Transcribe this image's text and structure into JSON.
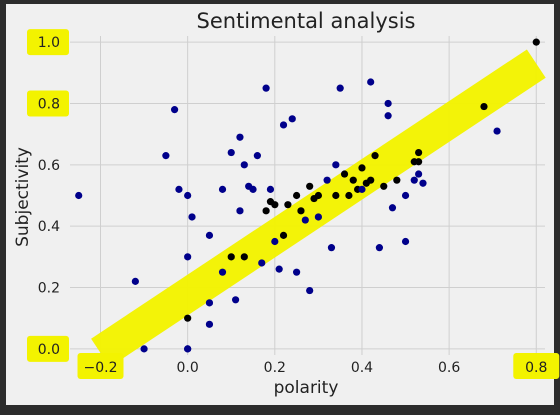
{
  "chart_data": {
    "type": "scatter",
    "title": "Sentimental analysis",
    "xlabel": "polarity",
    "ylabel": "Subjectivity",
    "xlim": [
      -0.27,
      0.82
    ],
    "ylim": [
      -0.02,
      1.02
    ],
    "xticks": [
      -0.2,
      0.0,
      0.2,
      0.4,
      0.6,
      0.8
    ],
    "xtick_labels": [
      "−0.2",
      "0.0",
      "0.2",
      "0.4",
      "0.6",
      "0.8"
    ],
    "yticks": [
      0.0,
      0.2,
      0.4,
      0.6,
      0.8,
      1.0
    ],
    "ytick_labels": [
      "0.0",
      "0.2",
      "0.4",
      "0.6",
      "0.8",
      "1.0"
    ],
    "grid": true,
    "highlighted_ticks": [
      "−0.2",
      "0.8",
      "0.0",
      "1.0"
    ],
    "trend_band": {
      "x": [
        -0.2,
        0.8
      ],
      "y": [
        0.0,
        0.93
      ]
    },
    "colors": {
      "background": "#2c2c2c",
      "plot_background": "#f0f0f0",
      "figure_background": "#f0f0f0",
      "point_default": "#00008b",
      "point_on_band": "#000000",
      "highlight": "#f3f300",
      "grid": "#cfcfcf",
      "text": "#222222"
    },
    "series": [
      {
        "values_x": [
          -0.25,
          -0.12,
          -0.1,
          -0.05,
          -0.03,
          -0.02,
          0.0,
          0.0,
          0.0,
          0.0,
          0.0,
          0.01,
          0.05,
          0.05,
          0.05,
          0.08,
          0.08,
          0.1,
          0.1,
          0.11,
          0.12,
          0.12,
          0.13,
          0.13,
          0.14,
          0.15,
          0.16,
          0.17,
          0.18,
          0.18,
          0.19,
          0.19,
          0.2,
          0.2,
          0.21,
          0.22,
          0.22,
          0.23,
          0.24,
          0.25,
          0.25,
          0.26,
          0.27,
          0.28,
          0.28,
          0.29,
          0.3,
          0.3,
          0.32,
          0.33,
          0.34,
          0.34,
          0.35,
          0.36,
          0.37,
          0.38,
          0.39,
          0.4,
          0.4,
          0.41,
          0.42,
          0.42,
          0.43,
          0.44,
          0.45,
          0.46,
          0.46,
          0.47,
          0.48,
          0.5,
          0.5,
          0.52,
          0.52,
          0.53,
          0.53,
          0.53,
          0.54,
          0.68,
          0.71,
          0.8
        ],
        "values_y": [
          0.5,
          0.22,
          0.0,
          0.63,
          0.78,
          0.52,
          0.5,
          0.3,
          0.1,
          0.0,
          0.0,
          0.43,
          0.15,
          0.08,
          0.37,
          0.25,
          0.52,
          0.64,
          0.3,
          0.16,
          0.45,
          0.69,
          0.3,
          0.6,
          0.53,
          0.52,
          0.63,
          0.28,
          0.85,
          0.45,
          0.48,
          0.52,
          0.47,
          0.35,
          0.26,
          0.73,
          0.37,
          0.47,
          0.75,
          0.5,
          0.25,
          0.45,
          0.42,
          0.19,
          0.53,
          0.49,
          0.43,
          0.5,
          0.55,
          0.33,
          0.5,
          0.6,
          0.85,
          0.57,
          0.5,
          0.55,
          0.52,
          0.59,
          0.52,
          0.54,
          0.55,
          0.87,
          0.63,
          0.33,
          0.53,
          0.8,
          0.76,
          0.46,
          0.55,
          0.35,
          0.5,
          0.61,
          0.55,
          0.57,
          0.64,
          0.61,
          0.54,
          0.79,
          0.71,
          1.0
        ],
        "on_band": [
          0,
          0,
          0,
          0,
          0,
          0,
          0,
          0,
          1,
          0,
          0,
          0,
          0,
          0,
          0,
          0,
          0,
          0,
          1,
          0,
          0,
          0,
          1,
          0,
          0,
          0,
          0,
          0,
          0,
          1,
          1,
          0,
          1,
          0,
          0,
          0,
          1,
          1,
          0,
          1,
          0,
          1,
          0,
          0,
          1,
          1,
          0,
          1,
          0,
          0,
          1,
          0,
          0,
          1,
          1,
          1,
          1,
          1,
          0,
          1,
          1,
          0,
          1,
          0,
          1,
          0,
          0,
          0,
          1,
          0,
          0,
          1,
          0,
          0,
          1,
          1,
          0,
          1,
          0,
          1
        ]
      }
    ]
  }
}
